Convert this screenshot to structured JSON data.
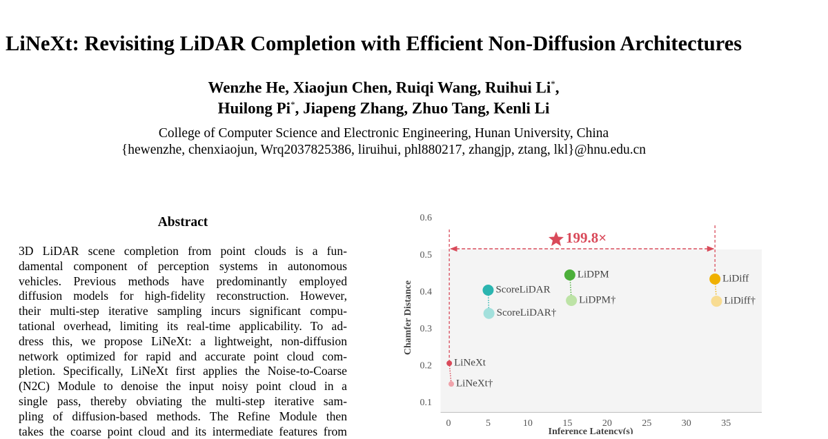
{
  "header": {
    "title": "LiNeXt: Revisiting LiDAR Completion with Efficient Non-Diffusion Architectures",
    "author_lines": [
      [
        {
          "text": "Wenzhe He, Xiaojun Chen, Ruiqi Wang, Ruihui Li"
        },
        {
          "sup": "*"
        },
        {
          "text": ","
        }
      ],
      [
        {
          "text": "Huilong Pi"
        },
        {
          "sup": "*"
        },
        {
          "text": ", Jiapeng Zhang, Zhuo Tang, Kenli Li"
        }
      ]
    ],
    "affiliation": "College of Computer Science and Electronic Engineering, Hunan University, China",
    "emails": "{hewenzhe, chenxiaojun, Wrq2037825386, liruihui, phl880217, zhangjp, ztang, lkl}@hnu.edu.cn"
  },
  "abstract": {
    "heading": "Abstract",
    "lines": [
      "3D LiDAR scene completion from point clouds is a fun-",
      "damental component of perception systems in autonomous",
      "vehicles. Previous methods have predominantly employed",
      "diffusion models for high-fidelity reconstruction. However,",
      "their multi-step iterative sampling incurs significant compu-",
      "tational overhead, limiting its real-time applicability. To ad-",
      "dress this, we propose LiNeXt: a lightweight, non-diffusion",
      "network optimized for rapid and accurate point cloud com-",
      "pletion. Specifically, LiNeXt first applies the Noise-to-Coarse",
      "(N2C) Module to denoise the input noisy point cloud in a",
      "single pass, thereby obviating the multi-step iterative sam-",
      "pling of diffusion-based methods. The Refine Module then",
      "takes the coarse point cloud and its intermediate features from"
    ]
  },
  "chart_data": {
    "type": "scatter",
    "x_label": "Inference Latency(s)",
    "y_label": "Chamfer Distance",
    "annotation": "199.8×",
    "xlim": [
      -1,
      39.5
    ],
    "ylim": [
      0.075,
      0.6
    ],
    "xticks": [
      0,
      5,
      10,
      15,
      20,
      25,
      30,
      35
    ],
    "yticks": [
      0.1,
      0.2,
      0.3,
      0.4,
      0.5,
      0.6
    ],
    "series": [
      {
        "name": "LiNeXt",
        "color": "#d94a5a",
        "size": 4,
        "x": [
          0.1
        ],
        "values": [
          0.208
        ]
      },
      {
        "name": "LiNeXt†",
        "color": "#f0a3ab",
        "size": 4,
        "x": [
          0.35
        ],
        "values": [
          0.152
        ]
      },
      {
        "name": "ScoreLiDAR",
        "color": "#2bb5b0",
        "size": 8,
        "x": [
          5.0
        ],
        "values": [
          0.406
        ]
      },
      {
        "name": "ScoreLiDAR†",
        "color": "#a3e0dc",
        "size": 8,
        "x": [
          5.1
        ],
        "values": [
          0.343
        ]
      },
      {
        "name": "LiDPM",
        "color": "#4caf3a",
        "size": 8,
        "x": [
          15.3
        ],
        "values": [
          0.447
        ]
      },
      {
        "name": "LiDPM†",
        "color": "#bde3a6",
        "size": 8,
        "x": [
          15.5
        ],
        "values": [
          0.378
        ]
      },
      {
        "name": "LiDiff",
        "color": "#f0b000",
        "size": 8,
        "x": [
          33.6
        ],
        "values": [
          0.436
        ]
      },
      {
        "name": "LiDiff†",
        "color": "#f8dc92",
        "size": 8,
        "x": [
          33.8
        ],
        "values": [
          0.376
        ]
      }
    ]
  }
}
